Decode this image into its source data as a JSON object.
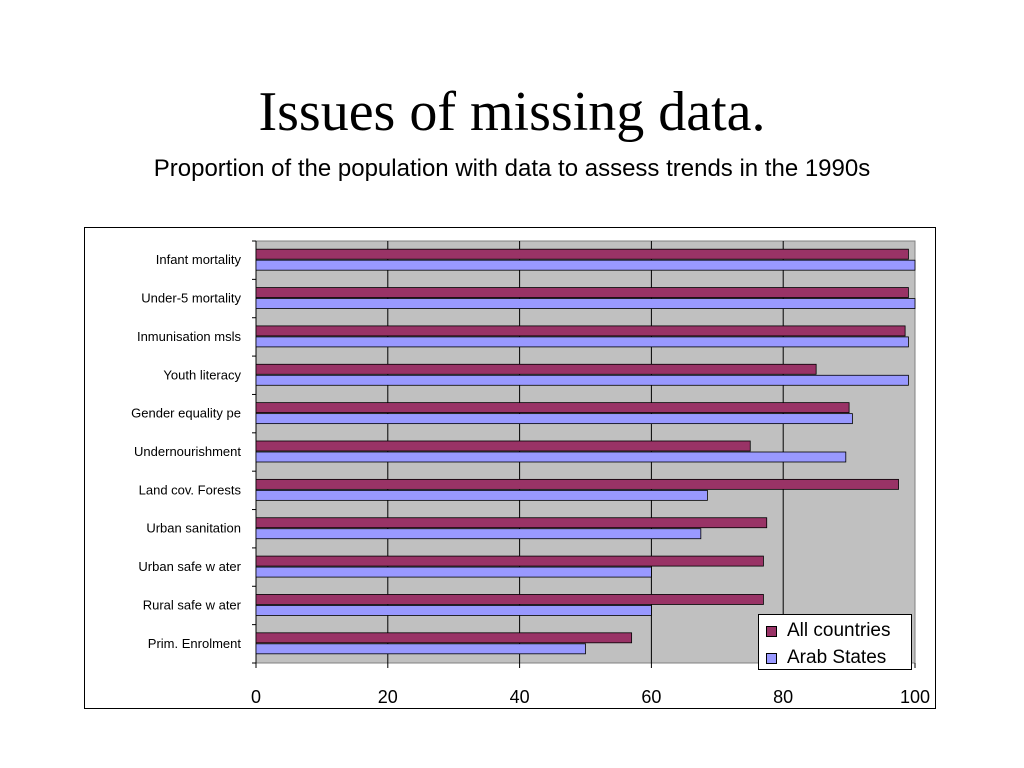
{
  "slide": {
    "title": "Issues of missing data.",
    "subtitle": "Proportion of the population with data to assess trends in the 1990s"
  },
  "chart_data": {
    "type": "bar",
    "orientation": "horizontal",
    "categories": [
      "Infant mortality",
      "Under-5 mortality",
      "Inmunisation msls",
      "Youth literacy",
      "Gender equality pe",
      "Undernourishment",
      "Land cov. Forests",
      "Urban sanitation",
      "Urban safe w ater",
      "Rural  safe w ater",
      "Prim. Enrolment"
    ],
    "series": [
      {
        "name": "All countries",
        "color": "#993366",
        "values": [
          99,
          99,
          98.5,
          85,
          90,
          75,
          97.5,
          77.5,
          77,
          77,
          57
        ]
      },
      {
        "name": "Arab States",
        "color": "#9999ff",
        "values": [
          100,
          100,
          99,
          99,
          90.5,
          89.5,
          68.5,
          67.5,
          60,
          60,
          50
        ]
      }
    ],
    "x_ticks": [
      "0",
      "20",
      "40",
      "60",
      "80",
      "100"
    ],
    "xlim": [
      0,
      100
    ],
    "plot_background": "#c0c0c0",
    "grid": true,
    "legend_position": "bottom-right"
  }
}
